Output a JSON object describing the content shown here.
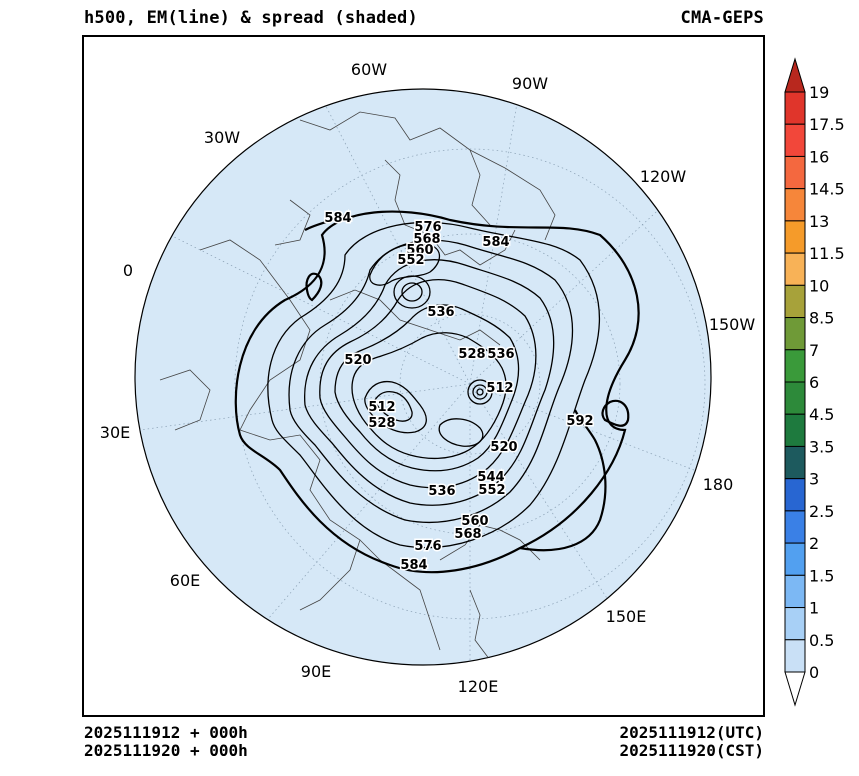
{
  "header": {
    "title": "h500, EM(line) & spread (shaded)",
    "model": "CMA-GEPS"
  },
  "footer": {
    "init_time": "2025111912 + 000h",
    "init_time_cst": "2025111920 + 000h",
    "valid_utc": "2025111912(UTC)",
    "valid_cst": "2025111920(CST)"
  },
  "map": {
    "projection": "north polar stereographic",
    "background_color": "#d6e8f7",
    "longitude_labels": [
      "60W",
      "90W",
      "30W",
      "120W",
      "0",
      "150W",
      "30E",
      "180",
      "60E",
      "150E",
      "90E",
      "120E"
    ],
    "contour_labels": [
      "584",
      "576",
      "568",
      "560",
      "552",
      "584",
      "536",
      "520",
      "528",
      "536",
      "512",
      "512",
      "528",
      "592",
      "520",
      "544",
      "536",
      "552",
      "560",
      "568",
      "576",
      "584"
    ]
  },
  "colorbar": {
    "levels": [
      "19",
      "17.5",
      "16",
      "14.5",
      "13",
      "11.5",
      "10",
      "8.5",
      "7",
      "6",
      "4.5",
      "3.5",
      "3",
      "2.5",
      "2",
      "1.5",
      "1",
      "0.5",
      "0"
    ],
    "colors": [
      "#b8281e",
      "#e0352b",
      "#f2473a",
      "#f4683f",
      "#f6863a",
      "#f59b2a",
      "#f8b257",
      "#a7a23a",
      "#6f9a37",
      "#3a9a3a",
      "#2d8a3a",
      "#1e7a3e",
      "#1d5a5e",
      "#2866d2",
      "#3a80e6",
      "#52a0f0",
      "#7cb8f4",
      "#a8d0f6",
      "#c9e0f6",
      "#dbeaf8"
    ]
  }
}
